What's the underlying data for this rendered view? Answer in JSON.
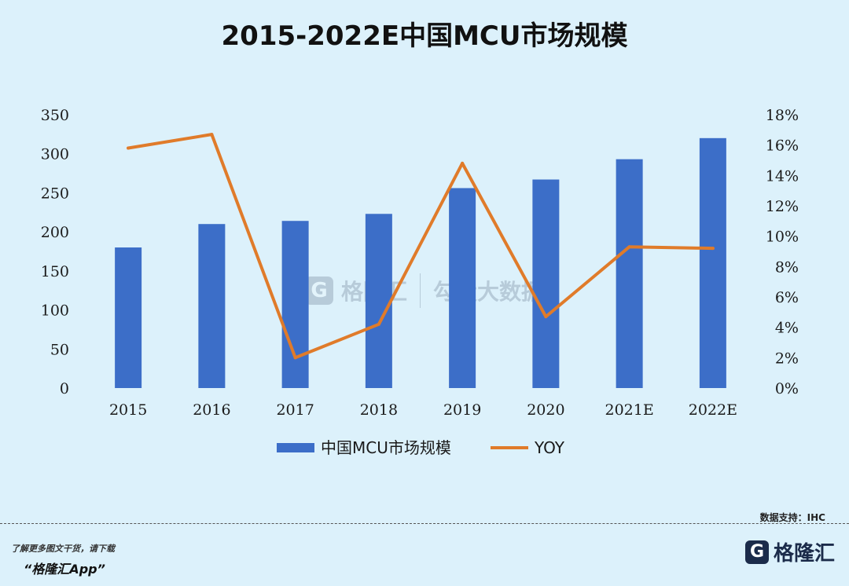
{
  "chart_data": {
    "type": "bar",
    "title": "2015-2022E中国MCU市场规模",
    "categories": [
      "2015",
      "2016",
      "2017",
      "2018",
      "2019",
      "2020",
      "2021E",
      "2022E"
    ],
    "series": [
      {
        "name": "中国MCU市场规模",
        "type": "bar",
        "axis": "left",
        "color": "#3c6ec8",
        "values": [
          180,
          210,
          214,
          223,
          256,
          267,
          293,
          320
        ]
      },
      {
        "name": "YOY",
        "type": "line",
        "axis": "right",
        "color": "#e07b2a",
        "values": [
          15.8,
          16.7,
          2.0,
          4.2,
          14.8,
          4.7,
          9.3,
          9.2
        ]
      }
    ],
    "ylim_left": [
      0,
      350
    ],
    "yticks_left": [
      "0",
      "50",
      "100",
      "150",
      "200",
      "250",
      "300",
      "350"
    ],
    "ylim_right": [
      0,
      18
    ],
    "yticks_right": [
      "0%",
      "2%",
      "4%",
      "6%",
      "8%",
      "10%",
      "12%",
      "14%",
      "16%",
      "18%"
    ],
    "grid": false,
    "legend_position": "bottom"
  },
  "footer": {
    "source": "数据支持：IHC",
    "promo_line1": "了解更多图文干货，请下载",
    "promo_line2": "“格隆汇App”",
    "brand_logo": "G",
    "brand_name": "格隆汇"
  },
  "watermark": {
    "logo": "G",
    "name1": "格隆汇",
    "name2": "勾股大数据"
  }
}
